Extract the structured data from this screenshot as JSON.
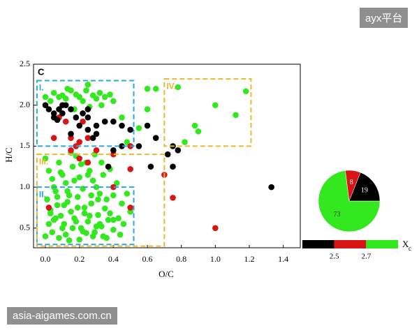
{
  "watermark_top": "ayx平台",
  "watermark_bottom": "asia-aigames.com.cn",
  "chart_data": [
    {
      "type": "scatter",
      "panel_label": "C",
      "x_label": "O/C",
      "y_label": "H/C",
      "xlim": [
        -0.07,
        1.5
      ],
      "ylim": [
        0.26,
        2.5
      ],
      "xticks": [
        {
          "value": 0,
          "label": "0.0"
        },
        0.2,
        0.4,
        0.6,
        0.8,
        {
          "value": 1,
          "label": "1.0"
        },
        1.2,
        1.4
      ],
      "yticks": [
        0.5,
        {
          "value": 1,
          "label": "1.0"
        },
        1.5,
        {
          "value": 2,
          "label": "2.0"
        },
        2.5
      ],
      "series": [
        {
          "color": "#33e81e",
          "x": [
            0.0,
            0.03,
            0.05,
            0.08,
            0.1,
            0.12,
            0.15,
            0.18,
            0.2,
            0.22,
            0.25,
            0.28,
            0.3,
            0.32,
            0.35,
            0.38,
            0.4,
            0.13,
            0.17,
            0.26,
            0.33,
            0.24,
            0.45,
            0.55,
            0.6,
            0.65,
            0.78,
            1.18,
            1.0,
            1.12,
            0.88,
            0.9,
            0.82,
            0.6,
            0.48,
            0.0,
            0.02,
            0.04,
            0.06,
            0.08,
            0.1,
            0.12,
            0.14,
            0.16,
            0.18,
            0.2,
            0.22,
            0.24,
            0.26,
            0.28,
            0.3,
            0.32,
            0.34,
            0.36,
            0.38,
            0.4,
            0.42,
            0.45,
            0.48,
            0.5,
            0.01,
            0.03,
            0.05,
            0.07,
            0.09,
            0.11,
            0.13,
            0.15,
            0.17,
            0.19,
            0.21,
            0.23,
            0.25,
            0.27,
            0.29,
            0.31,
            0.33,
            0.35,
            0.37,
            0.4,
            0.43,
            0.46,
            0.0,
            0.04,
            0.08,
            0.12,
            0.16,
            0.2,
            0.24,
            0.28,
            0.32,
            0.36,
            0.4,
            0.44,
            0.02,
            0.06,
            0.1,
            0.14,
            0.18,
            0.22,
            0.26,
            0.3,
            0.34,
            0.38,
            0.05,
            0.09,
            0.13,
            0.17,
            0.21,
            0.25,
            0.29,
            0.33,
            0.07,
            0.11,
            0.15,
            0.19,
            0.23,
            0.27,
            0.03,
            0.31
          ],
          "values": [
            2.1,
            2.05,
            2.15,
            2.1,
            2.12,
            2.08,
            2.18,
            2.13,
            2.1,
            2.05,
            2.25,
            2.12,
            2.08,
            2.15,
            2.1,
            2.13,
            2.05,
            2.2,
            1.95,
            1.98,
            2.0,
            2.18,
            1.85,
            1.72,
            2.2,
            2.2,
            2.22,
            2.17,
            2.0,
            1.88,
            1.75,
            1.68,
            1.55,
            1.95,
            1.55,
            1.35,
            1.2,
            1.1,
            0.95,
            1.3,
            1.15,
            1.05,
            0.9,
            1.25,
            1.38,
            1.12,
            0.98,
            1.3,
            1.2,
            1.08,
            1.0,
            0.92,
            1.15,
            0.85,
            1.22,
            0.9,
            1.05,
            0.8,
            0.92,
            0.7,
            0.85,
            0.72,
            0.6,
            0.78,
            0.65,
            0.55,
            0.82,
            0.7,
            0.62,
            0.75,
            0.5,
            0.68,
            0.58,
            0.8,
            0.45,
            0.66,
            0.52,
            0.74,
            0.6,
            0.48,
            0.62,
            0.55,
            0.4,
            0.45,
            0.38,
            0.42,
            0.5,
            0.36,
            0.44,
            0.4,
            0.55,
            0.38,
            0.6,
            0.42,
            0.55,
            0.62,
            0.5,
            0.35,
            0.58,
            0.46,
            0.65,
            0.52,
            0.4,
            0.68,
            1.0,
            1.18,
            0.95,
            1.08,
            1.28,
            1.15,
            1.4,
            1.3,
            0.88,
            0.78,
            1.42,
            0.88,
            0.75,
            0.9,
            0.68,
            0.85
          ]
        },
        {
          "color": "#d81414",
          "x": [
            0.08,
            0.12,
            0.05,
            0.15,
            0.2,
            0.25,
            0.18,
            0.3,
            0.15,
            0.2,
            0.25,
            0.4,
            0.5,
            0.5,
            0.7,
            0.75,
            0.4,
            0.5,
            1.0,
            0.02,
            0.22
          ],
          "values": [
            1.85,
            1.8,
            1.6,
            1.6,
            1.55,
            1.6,
            1.5,
            1.45,
            1.45,
            1.35,
            1.3,
            1.4,
            1.5,
            1.22,
            1.15,
            0.87,
            1.0,
            0.75,
            0.5,
            0.75,
            1.8
          ]
        },
        {
          "color": "#000000",
          "x": [
            0.0,
            0.02,
            0.05,
            0.08,
            0.1,
            0.12,
            0.15,
            0.05,
            0.18,
            0.22,
            0.25,
            0.1,
            0.07,
            0.2,
            0.25,
            0.3,
            0.15,
            0.28,
            0.3,
            0.35,
            0.4,
            0.45,
            0.5,
            0.6,
            0.65,
            0.55,
            0.45,
            0.4,
            0.37,
            0.62,
            0.75,
            0.78,
            0.72,
            0.75,
            1.33,
            0.25
          ],
          "values": [
            2.0,
            1.95,
            1.9,
            1.95,
            1.9,
            2.0,
            1.95,
            1.85,
            1.85,
            1.9,
            1.85,
            2.0,
            1.82,
            1.75,
            1.7,
            1.65,
            1.65,
            1.6,
            1.75,
            1.8,
            1.8,
            1.75,
            1.7,
            1.75,
            1.6,
            1.5,
            1.5,
            1.45,
            1.25,
            1.25,
            1.5,
            1.45,
            1.4,
            1.25,
            1.0,
            1.95
          ]
        }
      ],
      "regions": [
        {
          "label": "I.",
          "color": "#29a8d8",
          "xlim": [
            -0.05,
            0.52
          ],
          "ylim": [
            1.5,
            2.3
          ]
        },
        {
          "label": "II.",
          "color": "#29a8d8",
          "xlim": [
            -0.05,
            0.52
          ],
          "ylim": [
            0.3,
            1.0
          ]
        },
        {
          "label": "III.",
          "color": "#e8b830",
          "xlim": [
            -0.05,
            0.7
          ],
          "ylim": [
            0.28,
            1.4
          ]
        },
        {
          "label": "IV.",
          "color": "#e8b830",
          "xlim": [
            0.7,
            1.21
          ],
          "ylim": [
            1.5,
            2.32
          ]
        }
      ],
      "colorbar": {
        "colors": [
          "#000000",
          "#d81414",
          "#33e81e"
        ],
        "lim": [
          2.3,
          2.9
        ],
        "ticks": [
          2.5,
          2.7
        ],
        "label": "X",
        "label_sub": "c"
      }
    },
    {
      "type": "pie",
      "values": [
        73,
        8,
        19
      ],
      "colors": [
        "#33e81e",
        "#d81414",
        "#000000"
      ]
    }
  ]
}
